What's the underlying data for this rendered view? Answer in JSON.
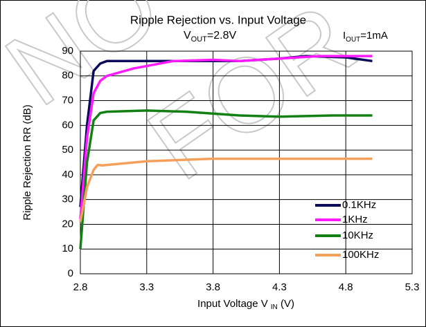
{
  "chart_data": {
    "type": "line",
    "title": "Ripple Rejection vs. Input Voltage",
    "subtitle": {
      "main": "V",
      "sub": "OUT",
      "rest": "=2.8V"
    },
    "annotation": {
      "main": "I",
      "sub": "OUT",
      "rest": "=1mA"
    },
    "watermark": [
      "NO",
      "FOR"
    ],
    "xlabel": {
      "main": "Input Voltage V",
      "sub": "IN",
      "rest": " (V)"
    },
    "ylabel": "Ripple Rejection RR (dB)",
    "xlim": [
      2.8,
      5.3
    ],
    "xticks": [
      2.8,
      3.3,
      3.8,
      4.3,
      4.8,
      5.3
    ],
    "ylim": [
      0,
      90
    ],
    "yticks": [
      0,
      10,
      20,
      30,
      40,
      50,
      60,
      70,
      80,
      90
    ],
    "grid": true,
    "legend": "lower right",
    "series": [
      {
        "name": "0.1KHz",
        "color": "#0a0a5a",
        "x": [
          2.8,
          2.85,
          2.9,
          2.95,
          3.0,
          3.3,
          3.6,
          4.0,
          4.3,
          4.5,
          4.8,
          5.0
        ],
        "values": [
          27,
          60,
          82,
          85,
          86,
          86,
          86,
          86,
          87,
          88,
          87.5,
          86
        ]
      },
      {
        "name": "1KHz",
        "color": "#ff1aff",
        "x": [
          2.8,
          2.85,
          2.9,
          2.95,
          3.0,
          3.2,
          3.5,
          3.8,
          4.0,
          4.3,
          4.6,
          5.0
        ],
        "values": [
          22,
          55,
          73,
          78,
          80,
          83,
          86,
          86.5,
          86,
          87,
          88,
          88
        ]
      },
      {
        "name": "10KHz",
        "color": "#138013",
        "x": [
          2.8,
          2.85,
          2.9,
          2.95,
          3.0,
          3.3,
          3.6,
          4.0,
          4.3,
          4.7,
          5.0
        ],
        "values": [
          10,
          45,
          62,
          65,
          65.5,
          66,
          65.5,
          64,
          63.5,
          64,
          64
        ]
      },
      {
        "name": "100KHz",
        "color": "#f5a05a",
        "x": [
          2.8,
          2.85,
          2.9,
          2.93,
          2.97,
          3.0,
          3.3,
          3.8,
          4.3,
          5.0
        ],
        "values": [
          21,
          35,
          42,
          44,
          43.8,
          44,
          45.5,
          46.5,
          46.5,
          46.5
        ]
      }
    ]
  }
}
